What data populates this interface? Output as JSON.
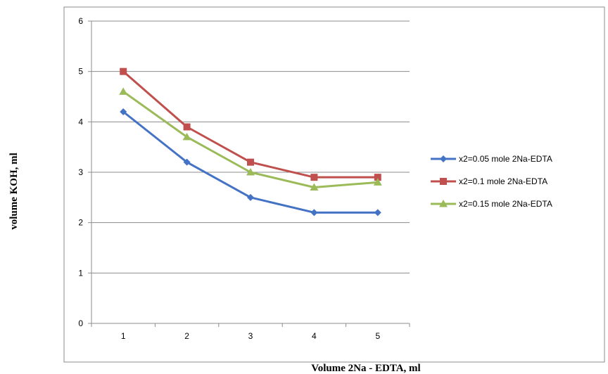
{
  "chart_data": {
    "type": "line",
    "x": [
      1,
      2,
      3,
      4,
      5
    ],
    "categories": [
      "1",
      "2",
      "3",
      "4",
      "5"
    ],
    "xlabel": "Volume 2Na - EDTA, ml",
    "ylabel": "volume KOH, ml",
    "ylim": [
      0,
      6
    ],
    "yticks": [
      0,
      1,
      2,
      3,
      4,
      5,
      6
    ],
    "grid": true,
    "legend_position": "right",
    "series": [
      {
        "name": "x2=0.05 mole 2Na-EDTA",
        "values": [
          4.2,
          3.2,
          2.5,
          2.2,
          2.2
        ],
        "color": "#4472C4",
        "marker": "diamond"
      },
      {
        "name": "x2=0.1 mole 2Na-EDTA",
        "values": [
          5.0,
          3.9,
          3.2,
          2.9,
          2.9
        ],
        "color": "#C0504D",
        "marker": "square"
      },
      {
        "name": "x2=0.15 mole 2Na-EDTA",
        "values": [
          4.6,
          3.7,
          3.0,
          2.7,
          2.8
        ],
        "color": "#9BBB59",
        "marker": "triangle"
      }
    ]
  }
}
